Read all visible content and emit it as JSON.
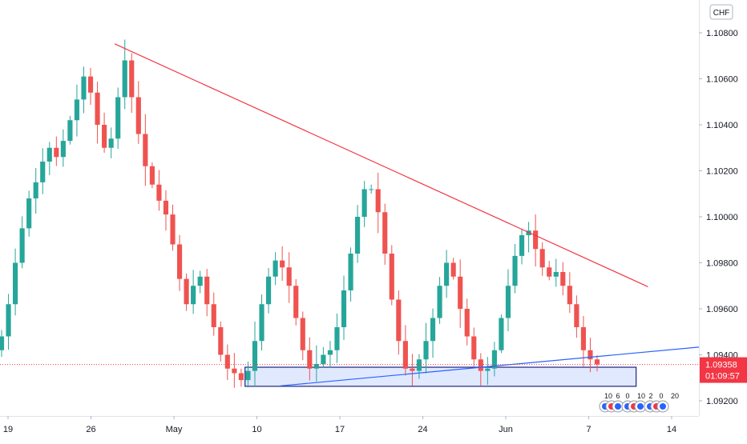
{
  "chart_data": {
    "type": "candlestick",
    "instrument_currency": "CHF",
    "x_ticks": [
      "19",
      "26",
      "May",
      "10",
      "17",
      "24",
      "Jun",
      "7",
      "14"
    ],
    "y_ticks": [
      "1.10800",
      "1.10600",
      "1.10400",
      "1.10200",
      "1.10000",
      "1.09800",
      "1.09600",
      "1.09400",
      "1.09200"
    ],
    "ylim": [
      1.09165,
      1.10875
    ],
    "last_price": "1.09358",
    "countdown": "01:09:57",
    "colors": {
      "up": "#26a69a",
      "down": "#ef5350",
      "resistance": "#f23645",
      "support": "#2962ff",
      "zone": "#1a237e"
    },
    "resistance_line": {
      "from": [
        "Apr 28",
        1.10752
      ],
      "to": [
        "Jun 11",
        1.09696
      ]
    },
    "support_line": {
      "from": [
        "May 11",
        1.09265
      ],
      "to": [
        "Jun 11",
        1.09413
      ]
    },
    "support_zone": {
      "from": "May 8",
      "to": "Jun 10",
      "top": 1.09346,
      "bottom": 1.09263
    },
    "event_markers": [
      "10",
      "6",
      "0",
      "10",
      "2",
      "0",
      "20"
    ],
    "candles_h4_open": [
      1.0942,
      1.0948,
      1.0962,
      1.098,
      1.0995,
      1.1008,
      1.1015,
      1.1024,
      1.103,
      1.1026,
      1.1033,
      1.1042,
      1.1051,
      1.1061,
      1.1054,
      1.104,
      1.103,
      1.1034,
      1.1052,
      1.1068,
      1.1052,
      1.1036,
      1.1022,
      1.1014,
      1.1007,
      1.1001,
      1.0988,
      1.0973,
      1.0962,
      1.097,
      1.0974,
      1.0962,
      1.0952,
      1.094,
      1.0934,
      1.0932,
      1.0929,
      1.0933,
      1.0946,
      1.0962,
      1.0974,
      1.0981,
      1.0978,
      1.097,
      1.0956,
      1.0942,
      1.0934,
      1.0936,
      1.094,
      1.0942,
      1.0952,
      1.0968,
      1.0984,
      1.1,
      1.1012,
      1.1012,
      1.1002,
      1.0984,
      1.0964,
      1.0946,
      1.0934,
      1.0933,
      1.0938,
      1.0946,
      1.0956,
      1.097,
      1.098,
      1.0974,
      1.096,
      1.0948,
      1.0938,
      1.0933,
      1.0934,
      1.0942,
      1.0956,
      1.097,
      1.0983,
      1.0992,
      1.0994,
      1.0986,
      1.0978,
      1.0974,
      1.0976,
      1.097,
      1.0962,
      1.0952,
      1.0942,
      1.0938
    ]
  }
}
